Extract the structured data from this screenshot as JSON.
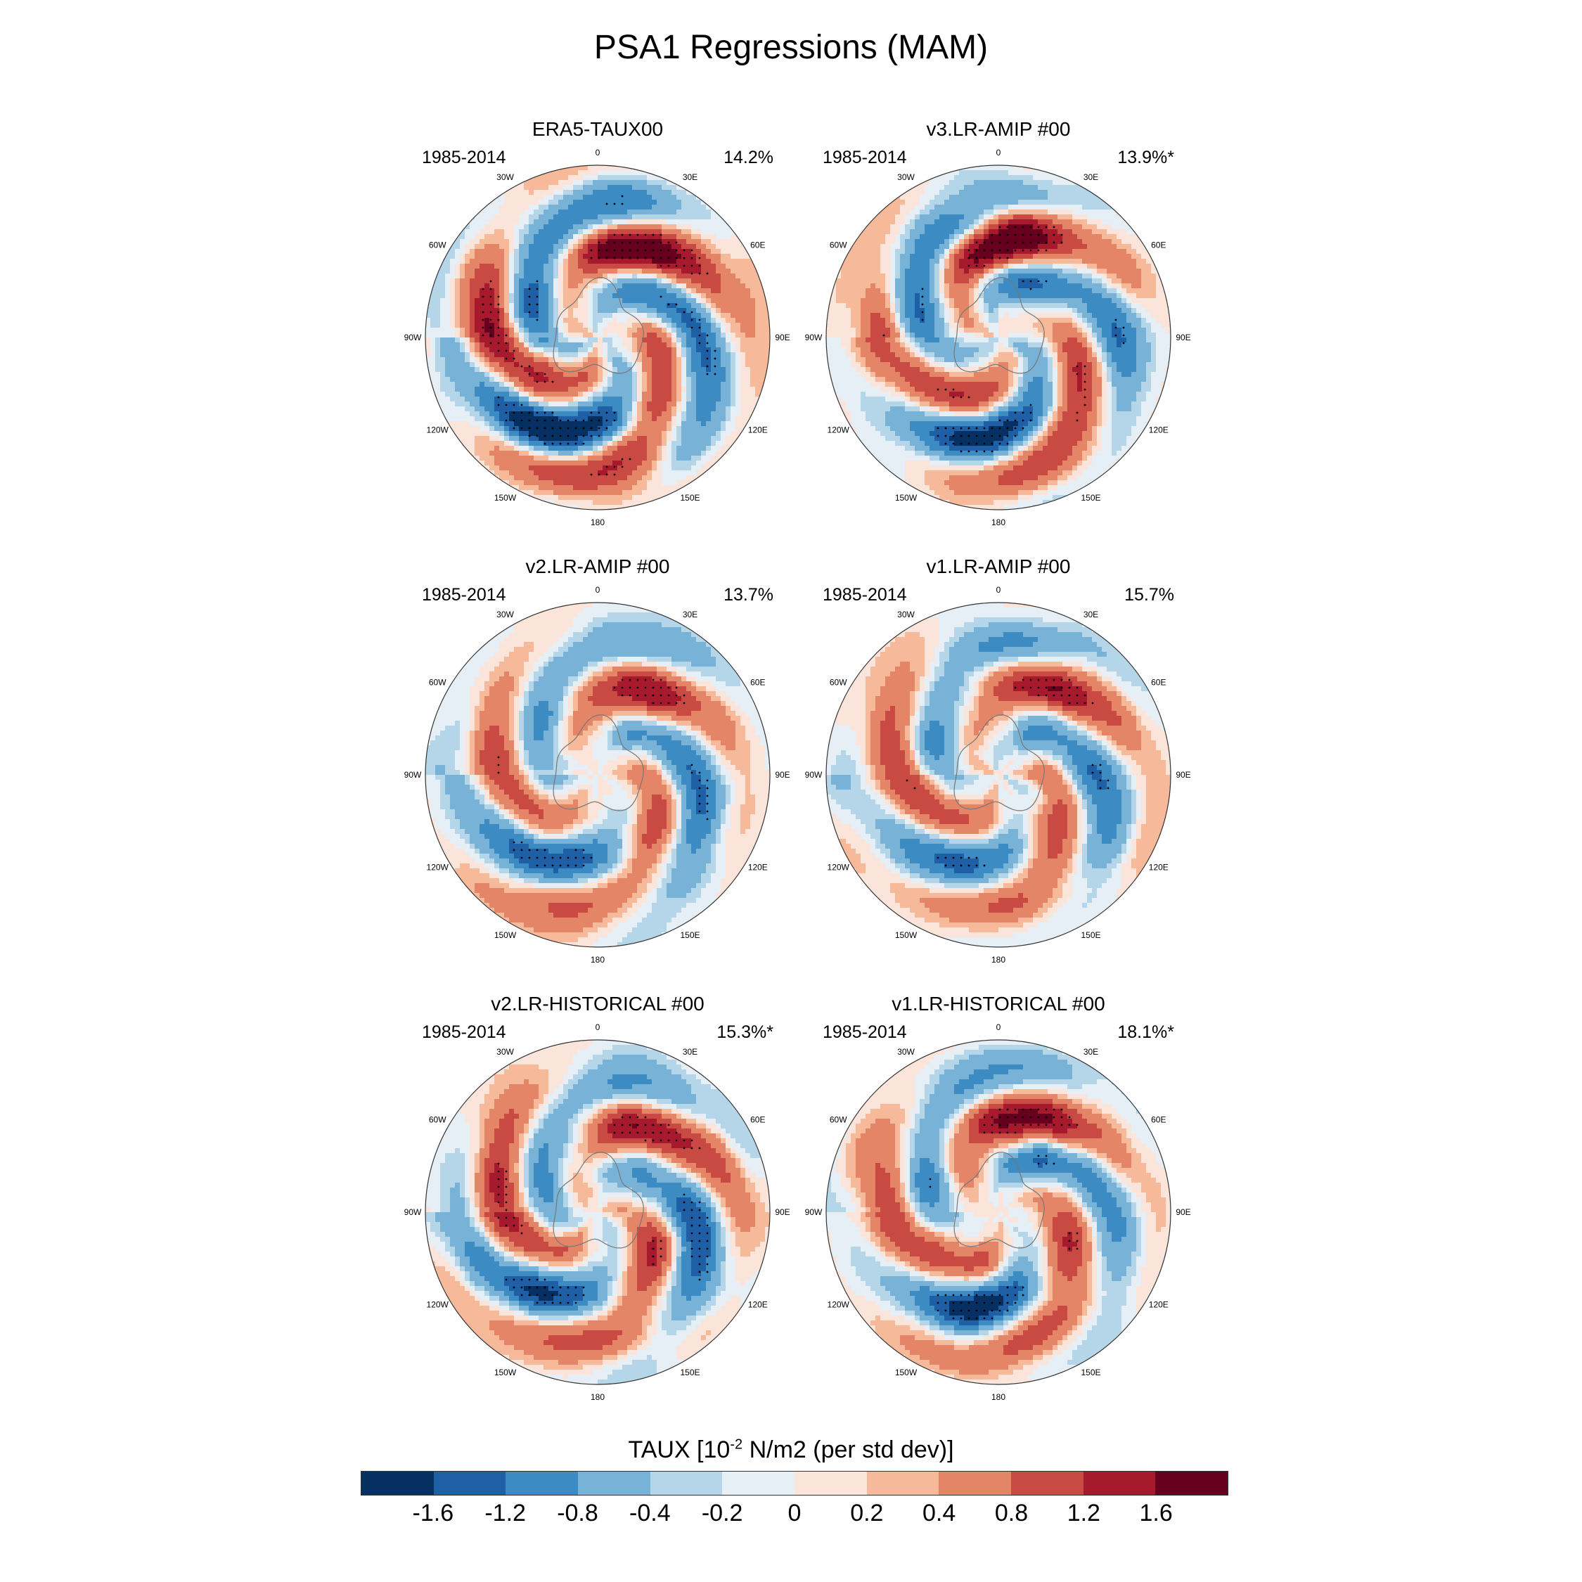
{
  "title": "PSA1 Regressions (MAM)",
  "lon_labels": {
    "l0": "0",
    "l30e": "30E",
    "l60e": "60E",
    "l90e": "90E",
    "l120e": "120E",
    "l150e": "150E",
    "l180": "180",
    "l150w": "150W",
    "l120w": "120W",
    "l90w": "90W",
    "l60w": "60W",
    "l30w": "30W"
  },
  "panels": [
    {
      "title": "ERA5-TAUX00",
      "period": "1985-2014",
      "variance": "14.2%",
      "amp": 1.0,
      "rot": 0,
      "strength": 2.0
    },
    {
      "title": "v3.LR-AMIP  #00",
      "period": "1985-2014",
      "variance": "13.9%*",
      "amp": 1.0,
      "rot": 18,
      "strength": 1.8
    },
    {
      "title": "v2.LR-AMIP  #00",
      "period": "1985-2014",
      "variance": "13.7%",
      "amp": 0.9,
      "rot": -8,
      "strength": 1.6
    },
    {
      "title": "v1.LR-AMIP  #00",
      "period": "1985-2014",
      "variance": "15.7%",
      "amp": 0.9,
      "rot": -5,
      "strength": 1.6
    },
    {
      "title": "v2.LR-HISTORICAL  #00",
      "period": "1985-2014",
      "variance": "15.3%*",
      "amp": 0.95,
      "rot": -12,
      "strength": 1.7
    },
    {
      "title": "v1.LR-HISTORICAL  #00",
      "period": "1985-2014",
      "variance": "18.1%*",
      "amp": 0.95,
      "rot": 10,
      "strength": 1.7
    }
  ],
  "colorbar": {
    "title_prefix": "TAUX [10",
    "title_exp": "-2",
    "title_suffix": " N/m2 (per std dev)]",
    "colors": [
      "#053061",
      "#1f5fa6",
      "#3c8bc3",
      "#78b2d6",
      "#b5d6e8",
      "#e6eff5",
      "#fbe5da",
      "#f6b99a",
      "#e58567",
      "#c84a42",
      "#a7192d",
      "#67001f"
    ],
    "labels": [
      "-1.6",
      "-1.2",
      "-0.8",
      "-0.4",
      "-0.2",
      "0",
      "0.2",
      "0.4",
      "0.8",
      "1.2",
      "1.6"
    ]
  }
}
